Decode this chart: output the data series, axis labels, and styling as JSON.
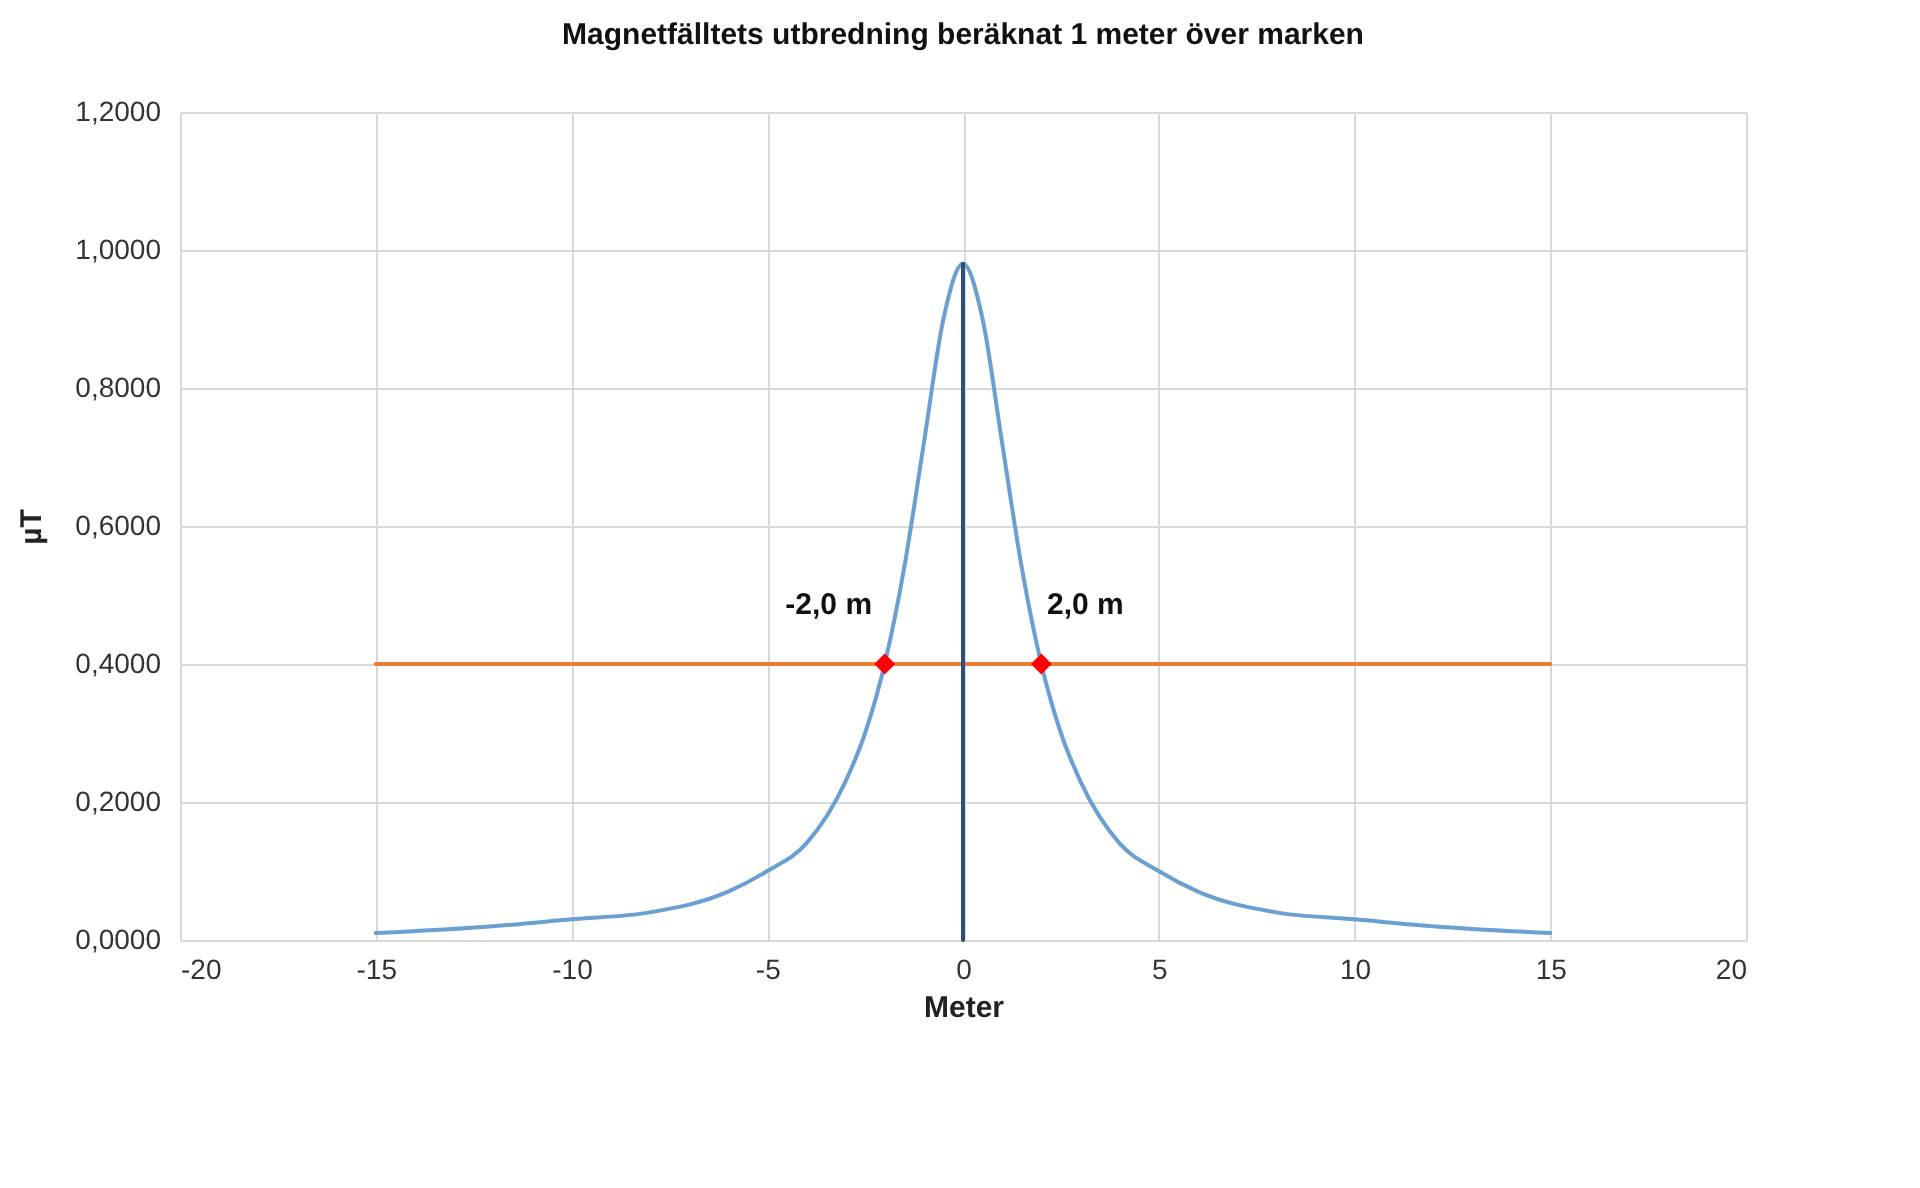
{
  "chart_data": {
    "type": "line",
    "title": "Magnetfälltets utbredning beräknat 1 meter över marken",
    "xlabel": "Meter",
    "ylabel": "µT",
    "xlim": [
      -20,
      20
    ],
    "xticks": [
      -20,
      -15,
      -10,
      -5,
      0,
      5,
      10,
      15,
      20
    ],
    "ylim": [
      0,
      1.2
    ],
    "yticks": [
      {
        "value": 0,
        "label": "0,0000"
      },
      {
        "value": 0.2,
        "label": "0,2000"
      },
      {
        "value": 0.4,
        "label": "0,4000"
      },
      {
        "value": 0.6,
        "label": "0,6000"
      },
      {
        "value": 0.8,
        "label": "0,8000"
      },
      {
        "value": 1.0,
        "label": "1,0000"
      },
      {
        "value": 1.2,
        "label": "1,2000"
      }
    ],
    "grid": true,
    "series": [
      {
        "color": "#6a9fd4",
        "x": [
          -15,
          -12,
          -10,
          -8,
          -6,
          -5,
          -4,
          -3,
          -2.5,
          -2,
          -1.5,
          -1,
          -0.5,
          0,
          0.5,
          1,
          1.5,
          2,
          2.5,
          3,
          4,
          5,
          6,
          8,
          10,
          12,
          15
        ],
        "values": [
          0.01,
          0.02,
          0.03,
          0.04,
          0.07,
          0.1,
          0.14,
          0.23,
          0.3,
          0.4,
          0.54,
          0.72,
          0.9,
          0.98,
          0.9,
          0.72,
          0.54,
          0.4,
          0.3,
          0.23,
          0.14,
          0.1,
          0.07,
          0.04,
          0.03,
          0.02,
          0.01
        ]
      },
      {
        "type": "line",
        "color": "#ed7d31",
        "x": [
          -15,
          15
        ],
        "values": [
          0.4,
          0.4
        ]
      },
      {
        "type": "line",
        "color": "#2f4d7e",
        "x": [
          0,
          0
        ],
        "values": [
          0,
          0.98
        ]
      },
      {
        "type": "scatter",
        "color": "#ff0000",
        "marker": "diamond",
        "x": [
          -2,
          2
        ],
        "values": [
          0.4,
          0.4
        ]
      }
    ],
    "annotations": [
      {
        "text": "-2,0 m",
        "x": -2,
        "y": 0.4
      },
      {
        "text": "2,0 m",
        "x": 2,
        "y": 0.4
      }
    ]
  }
}
